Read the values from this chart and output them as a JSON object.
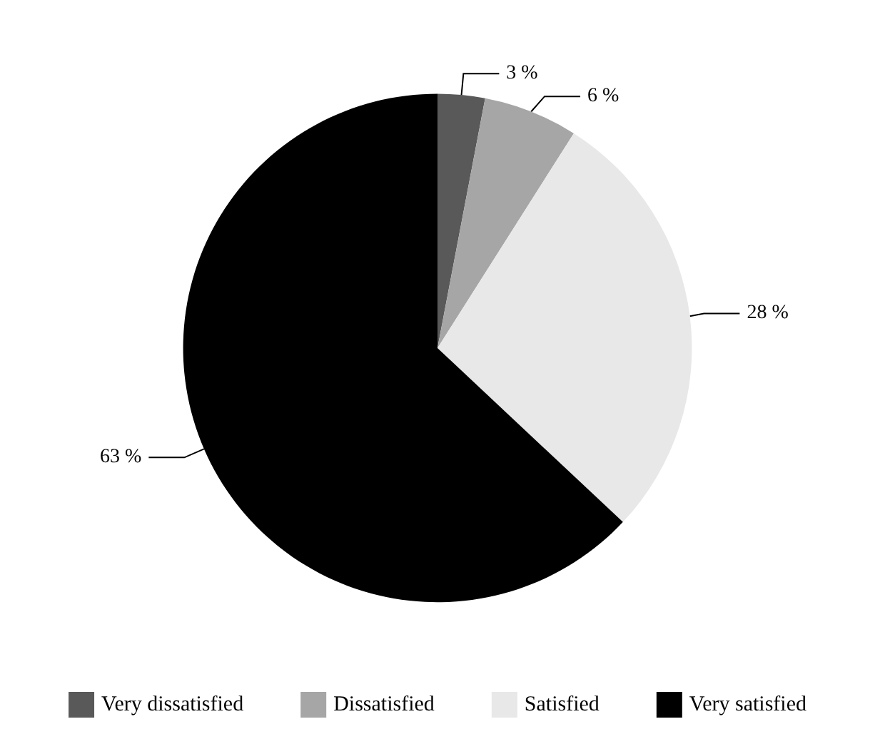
{
  "chart_data": {
    "type": "pie",
    "categories": [
      "Very dissatisfied",
      "Dissatisfied",
      "Satisfied",
      "Very satisfied"
    ],
    "values": [
      3,
      6,
      28,
      63
    ],
    "colors": [
      "#595959",
      "#a6a6a6",
      "#e8e8e8",
      "#000000"
    ],
    "value_labels": [
      "3 %",
      "6 %",
      "28 %",
      "63 %"
    ],
    "legend": "bottom"
  }
}
